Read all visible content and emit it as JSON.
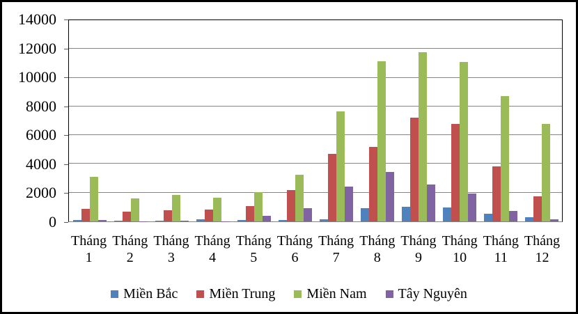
{
  "chart_data": {
    "type": "bar",
    "title": "",
    "xlabel": "",
    "ylabel": "",
    "categories": [
      "Tháng 1",
      "Tháng 2",
      "Tháng 3",
      "Tháng 4",
      "Tháng 5",
      "Tháng 6",
      "Tháng 7",
      "Tháng 8",
      "Tháng 9",
      "Tháng 10",
      "Tháng 11",
      "Tháng 12"
    ],
    "series": [
      {
        "name": "Miền Bắc",
        "color": "#4F81BD",
        "values": [
          100,
          30,
          30,
          130,
          110,
          110,
          170,
          900,
          1000,
          950,
          550,
          280
        ]
      },
      {
        "name": "Miền Trung",
        "color": "#C0504D",
        "values": [
          850,
          700,
          780,
          830,
          1050,
          2180,
          4700,
          5200,
          7200,
          6800,
          3850,
          1750
        ]
      },
      {
        "name": "Miền Nam",
        "color": "#9BBB59",
        "values": [
          3100,
          1600,
          1850,
          1650,
          2050,
          3250,
          7650,
          11150,
          11750,
          11100,
          8700,
          6800
        ]
      },
      {
        "name": "Tây Nguyên",
        "color": "#8064A2",
        "values": [
          80,
          20,
          70,
          20,
          380,
          900,
          2400,
          3450,
          2550,
          1950,
          750,
          150
        ]
      }
    ],
    "ylim": [
      0,
      14000
    ],
    "yticks": [
      0,
      2000,
      4000,
      6000,
      8000,
      10000,
      12000,
      14000
    ],
    "grid": true,
    "legend_position": "bottom"
  },
  "colors": {
    "gridline": "#848484",
    "axis": "#000000",
    "frame": "#000000",
    "background": "#FFFFFF"
  }
}
